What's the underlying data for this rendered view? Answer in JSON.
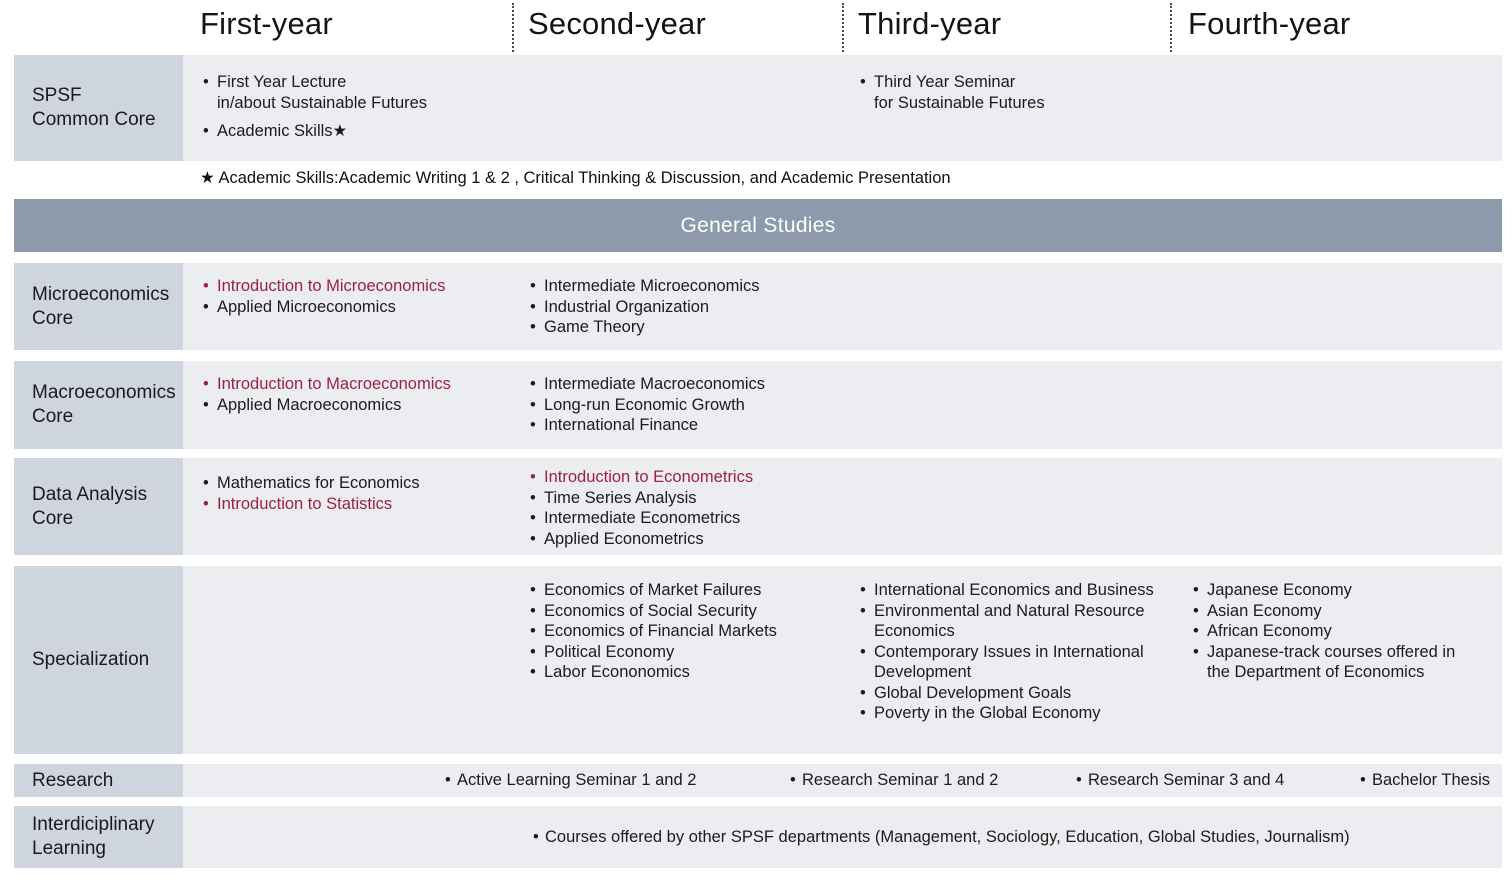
{
  "palette": {
    "label_bg": "#cfd5df",
    "cell_bg": "#ecedf0",
    "band_bg": "#8c9aab",
    "band_text": "#ffffff",
    "highlight_red": "#9e2143",
    "text": "#1b1b1b"
  },
  "header": {
    "columns": [
      {
        "label": "First-year"
      },
      {
        "label": "Second-year"
      },
      {
        "label": "Third-year"
      },
      {
        "label": "Fourth-year"
      }
    ]
  },
  "footnote": "★ Academic Skills:Academic Writing 1 & 2 , Critical Thinking & Discussion, and Academic Presentation",
  "band": {
    "label": "General Studies"
  },
  "rows": [
    {
      "id": "spsf-common-core",
      "label_lines": [
        "SPSF",
        "Common Core"
      ],
      "cells": [
        {
          "col": 0,
          "items": [
            {
              "lines": [
                "First Year Lecture",
                "in/about  Sustainable Futures"
              ],
              "red": false
            },
            {
              "lines": [
                "Academic Skills★"
              ],
              "red": false,
              "gap_before": true
            }
          ]
        },
        {
          "col": 2,
          "items": [
            {
              "lines": [
                "Third Year Seminar",
                "for Sustainable Futures"
              ],
              "red": false
            }
          ]
        }
      ]
    },
    {
      "id": "microeconomics-core",
      "label_lines": [
        "Microeconomics",
        "Core"
      ],
      "cells": [
        {
          "col": 0,
          "items": [
            {
              "lines": [
                "Introduction to Microeconomics"
              ],
              "red": true
            },
            {
              "lines": [
                "Applied Microeconomics"
              ],
              "red": false
            }
          ]
        },
        {
          "col": 1,
          "items": [
            {
              "lines": [
                "Intermediate Microeconomics"
              ],
              "red": false
            },
            {
              "lines": [
                "Industrial Organization"
              ],
              "red": false
            },
            {
              "lines": [
                "Game Theory"
              ],
              "red": false
            }
          ]
        }
      ]
    },
    {
      "id": "macroeconomics-core",
      "label_lines": [
        "Macroeconomics",
        "Core"
      ],
      "cells": [
        {
          "col": 0,
          "items": [
            {
              "lines": [
                "Introduction to Macroeconomics"
              ],
              "red": true
            },
            {
              "lines": [
                "Applied Macroeconomics"
              ],
              "red": false
            }
          ]
        },
        {
          "col": 1,
          "items": [
            {
              "lines": [
                "Intermediate Macroeconomics"
              ],
              "red": false
            },
            {
              "lines": [
                "Long-run Economic Growth"
              ],
              "red": false
            },
            {
              "lines": [
                "International Finance"
              ],
              "red": false
            }
          ]
        }
      ]
    },
    {
      "id": "data-analysis-core",
      "label_lines": [
        "Data Analysis",
        "Core"
      ],
      "cells": [
        {
          "col": 0,
          "items": [
            {
              "lines": [
                "Mathematics for Economics"
              ],
              "red": false
            },
            {
              "lines": [
                "Introduction to Statistics"
              ],
              "red": true
            }
          ]
        },
        {
          "col": 1,
          "items": [
            {
              "lines": [
                "Introduction to Econometrics"
              ],
              "red": true
            },
            {
              "lines": [
                "Time Series Analysis"
              ],
              "red": false
            },
            {
              "lines": [
                "Intermediate Econometrics"
              ],
              "red": false
            },
            {
              "lines": [
                "Applied Econometrics"
              ],
              "red": false
            }
          ]
        }
      ]
    },
    {
      "id": "specialization",
      "label_lines": [
        "Specialization"
      ],
      "cells": [
        {
          "col": 1,
          "items": [
            {
              "lines": [
                "Economics of Market Failures"
              ],
              "red": false
            },
            {
              "lines": [
                "Economics of Social Security"
              ],
              "red": false
            },
            {
              "lines": [
                "Economics of Financial Markets"
              ],
              "red": false
            },
            {
              "lines": [
                "Political Economy"
              ],
              "red": false
            },
            {
              "lines": [
                "Labor Econonomics"
              ],
              "red": false
            }
          ]
        },
        {
          "col": 2,
          "items": [
            {
              "lines": [
                "International Economics and Business"
              ],
              "red": false
            },
            {
              "lines": [
                "Environmental and Natural Resource",
                "Economics"
              ],
              "red": false
            },
            {
              "lines": [
                "Contemporary Issues in International",
                "Development"
              ],
              "red": false
            },
            {
              "lines": [
                "Global Development Goals"
              ],
              "red": false
            },
            {
              "lines": [
                "Poverty in the Global Economy"
              ],
              "red": false
            }
          ]
        },
        {
          "col": 3,
          "items": [
            {
              "lines": [
                "Japanese Economy"
              ],
              "red": false
            },
            {
              "lines": [
                "Asian Economy"
              ],
              "red": false
            },
            {
              "lines": [
                "African Economy"
              ],
              "red": false
            },
            {
              "lines": [
                "Japanese-track courses offered in",
                "the Department of Economics"
              ],
              "red": false
            }
          ]
        }
      ]
    }
  ],
  "research_row": {
    "id": "research",
    "label_lines": [
      "Research"
    ],
    "items": [
      {
        "text": "Active Learning Seminar 1 and 2"
      },
      {
        "text": "Research Seminar 1 and 2"
      },
      {
        "text": "Research Seminar 3 and 4"
      },
      {
        "text": "Bachelor Thesis"
      }
    ]
  },
  "interdisciplinary_row": {
    "id": "interdisciplinary-learning",
    "label_lines": [
      "Interdiciplinary",
      "Learning"
    ],
    "items": [
      {
        "text": "Courses offered by other SPSF departments (Management, Sociology, Education, Global Studies, Journalism)"
      }
    ]
  }
}
